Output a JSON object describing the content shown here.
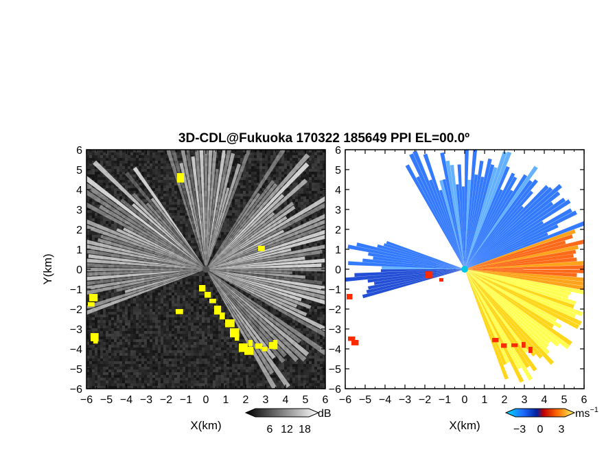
{
  "chart_data": [
    {
      "panel": "reflectivity",
      "type": "heatmap",
      "title": "3D-CDL@Fukuoka 170322 185649 PPI EL=00.0º",
      "xlabel": "X(km)",
      "ylabel": "Y(km)",
      "xlim": [
        -6,
        6
      ],
      "ylim": [
        -6,
        6
      ],
      "xticks": [
        "−6",
        "−5",
        "−4",
        "−3",
        "−2",
        "−1",
        "0",
        "1",
        "2",
        "3",
        "4",
        "5",
        "6"
      ],
      "yticks": [
        "6",
        "5",
        "4",
        "3",
        "2",
        "1",
        "0",
        "−1",
        "−2",
        "−3",
        "−4",
        "−5",
        "−6"
      ],
      "colorbar": {
        "label": "dB",
        "ticks": [
          "6",
          "12",
          "18"
        ],
        "range": [
          0,
          24
        ]
      },
      "highlight_color": "#ffff00",
      "grayscale": true
    },
    {
      "panel": "doppler-velocity",
      "type": "heatmap",
      "xlabel": "X(km)",
      "ylabel": "Y(km)",
      "xlim": [
        -6,
        6
      ],
      "ylim": [
        -6,
        6
      ],
      "xticks": [
        "−6",
        "−5",
        "−4",
        "−3",
        "−2",
        "−1",
        "0",
        "1",
        "2",
        "3",
        "4",
        "5",
        "6"
      ],
      "yticks": [
        "6",
        "5",
        "4",
        "3",
        "2",
        "1",
        "0",
        "−1",
        "−2",
        "−3",
        "−4",
        "−5",
        "−6"
      ],
      "colorbar": {
        "label": "ms",
        "label_exponent": "−1",
        "ticks": [
          "−3",
          "0",
          "3"
        ],
        "range": [
          -4,
          4
        ]
      },
      "colors": {
        "approaching": "#1e6bff",
        "near_zero": "#00c8e6",
        "receding_low": "#ff2a00",
        "receding_mid": "#ff8c00",
        "receding_high": "#ffff00"
      }
    }
  ]
}
